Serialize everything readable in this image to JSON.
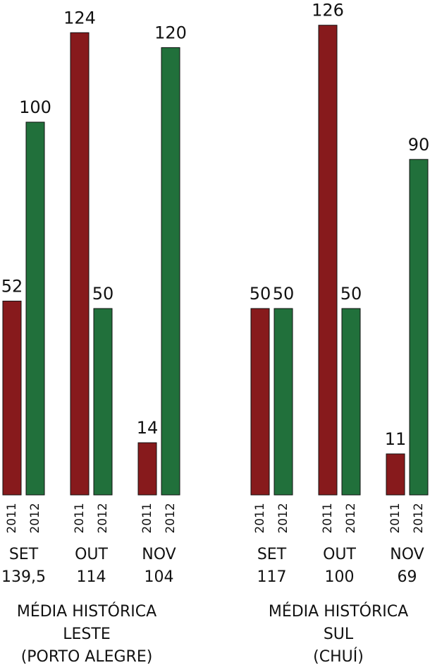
{
  "chart_data": [
    {
      "type": "bar",
      "categories": [
        "SET",
        "OUT",
        "NOV"
      ],
      "averages": [
        {
          "value": 139.5,
          "label": "139,5"
        },
        114,
        104
      ],
      "footer": [
        "MÉDIA HISTÓRICA",
        "LESTE",
        "(PORTO ALEGRE)"
      ],
      "series": [
        {
          "name": "2011",
          "color": "#871a1c",
          "values": [
            52,
            124,
            14
          ]
        },
        {
          "name": "2012",
          "color": "#21703b",
          "values": [
            100,
            50,
            120
          ]
        }
      ]
    },
    {
      "type": "bar",
      "categories": [
        "SET",
        "OUT",
        "NOV"
      ],
      "averages": [
        117,
        100,
        69
      ],
      "footer": [
        "MÉDIA HISTÓRICA",
        "SUL",
        "(CHUÍ)"
      ],
      "series": [
        {
          "name": "2011",
          "color": "#871a1c",
          "values": [
            50,
            126,
            11
          ]
        },
        {
          "name": "2012",
          "color": "#21703b",
          "values": [
            50,
            50,
            90
          ]
        }
      ]
    }
  ]
}
